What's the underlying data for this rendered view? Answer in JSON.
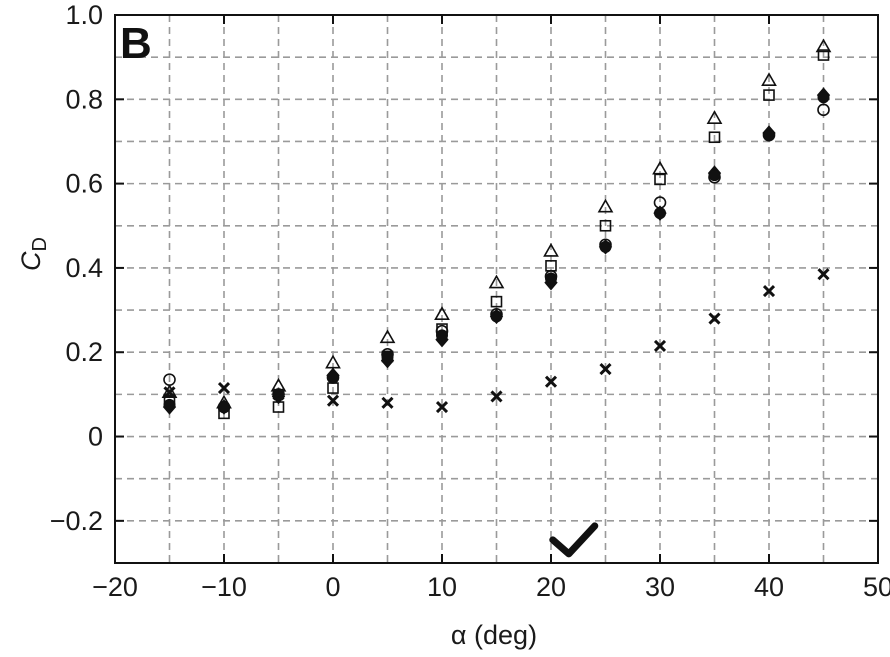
{
  "panel_label": "B",
  "chart_data": {
    "type": "scatter",
    "xlabel": "α (deg)",
    "ylabel_main": "C",
    "ylabel_sub": "D",
    "xlim": [
      -20,
      50
    ],
    "ylim": [
      -0.3,
      1.0
    ],
    "x_ticks": [
      -20,
      -10,
      0,
      10,
      20,
      30,
      40,
      50
    ],
    "x_tick_labels": [
      "−20",
      "−10",
      "0",
      "10",
      "20",
      "30",
      "40",
      "50"
    ],
    "y_ticks": [
      -0.2,
      0,
      0.2,
      0.4,
      0.6,
      0.8,
      1.0
    ],
    "y_tick_labels": [
      "−0.2",
      "0",
      "0.2",
      "0.4",
      "0.6",
      "0.8",
      "1.0"
    ],
    "grid": true,
    "x": [
      -15,
      -10,
      -5,
      0,
      5,
      10,
      15,
      20,
      25,
      30,
      35,
      40,
      45
    ],
    "series": [
      {
        "marker": "triangle-open",
        "values": [
          0.105,
          0.08,
          0.12,
          0.175,
          0.235,
          0.29,
          0.365,
          0.44,
          0.545,
          0.635,
          0.755,
          0.845,
          0.925
        ]
      },
      {
        "marker": "square-open",
        "values": [
          0.085,
          0.055,
          0.07,
          0.115,
          0.19,
          0.255,
          0.32,
          0.405,
          0.5,
          0.61,
          0.71,
          0.81,
          0.905
        ]
      },
      {
        "marker": "circle-open",
        "values": [
          0.135,
          0.07,
          0.1,
          0.14,
          0.195,
          0.25,
          0.29,
          0.38,
          0.455,
          0.555,
          0.615,
          0.715,
          0.775
        ]
      },
      {
        "marker": "diamond-filled",
        "values": [
          0.07,
          0.07,
          0.095,
          0.145,
          0.18,
          0.23,
          0.285,
          0.365,
          0.45,
          0.53,
          0.625,
          0.72,
          0.81
        ]
      },
      {
        "marker": "circle-filled",
        "values": [
          0.075,
          0.07,
          0.1,
          0.14,
          0.19,
          0.24,
          0.285,
          0.375,
          0.45,
          0.53,
          0.62,
          0.715,
          0.805
        ]
      },
      {
        "marker": "x",
        "values": [
          0.105,
          0.115,
          0.1,
          0.085,
          0.08,
          0.07,
          0.095,
          0.13,
          0.16,
          0.215,
          0.28,
          0.345,
          0.385
        ]
      }
    ],
    "annotation": {
      "type": "checkmark",
      "x": 22,
      "y": -0.25
    },
    "colors": {
      "grid": "#9a9a9a",
      "axis": "#111111",
      "marker": "#111111"
    }
  }
}
